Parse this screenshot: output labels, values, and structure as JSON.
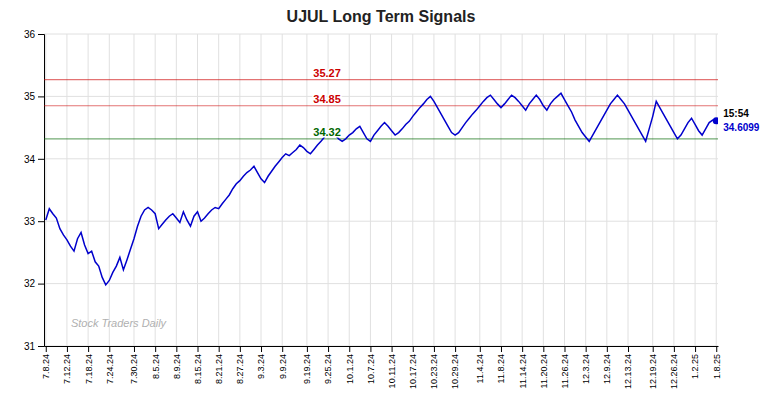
{
  "chart_data": {
    "type": "line",
    "title": "UJUL Long Term Signals",
    "categories": [
      "7.8.24",
      null,
      null,
      null,
      null,
      null,
      "7.12.24",
      null,
      null,
      null,
      null,
      null,
      "7.18.24",
      null,
      null,
      null,
      null,
      null,
      "7.24.24",
      null,
      null,
      null,
      null,
      null,
      null,
      "7.30.24",
      null,
      null,
      null,
      null,
      null,
      "8.5.24",
      null,
      null,
      null,
      null,
      null,
      "8.9.24",
      null,
      null,
      null,
      null,
      null,
      "8.15.24",
      null,
      null,
      null,
      null,
      null,
      "8.21.24",
      null,
      null,
      null,
      null,
      null,
      "8.27.24",
      null,
      null,
      null,
      null,
      null,
      "9.3.24",
      null,
      null,
      null,
      null,
      null,
      "9.9.24",
      null,
      null,
      null,
      null,
      null,
      null,
      "9.19.24",
      null,
      null,
      null,
      null,
      null,
      "9.25.24",
      null,
      null,
      null,
      null,
      null,
      "10.1.24",
      null,
      null,
      null,
      null,
      null,
      "10.7.24",
      null,
      null,
      null,
      null,
      null,
      "10.11.24",
      null,
      null,
      null,
      null,
      null,
      "10.17.24",
      null,
      null,
      null,
      null,
      null,
      "10.23.24",
      null,
      null,
      null,
      null,
      null,
      "10.29.24",
      null,
      null,
      null,
      null,
      null,
      null,
      "11.4.24",
      null,
      null,
      null,
      null,
      null,
      "11.8.24",
      null,
      null,
      null,
      null,
      null,
      "11.14.24",
      null,
      null,
      null,
      null,
      null,
      "11.20.24",
      null,
      null,
      null,
      null,
      null,
      "11.26.24",
      null,
      null,
      null,
      null,
      null,
      "12.3.24",
      null,
      null,
      null,
      null,
      null,
      "12.9.24",
      null,
      null,
      null,
      null,
      null,
      "12.13.24",
      null,
      null,
      null,
      null,
      null,
      null,
      "12.19.24",
      null,
      null,
      null,
      null,
      null,
      "12.26.24",
      null,
      null,
      null,
      null,
      null,
      "1.2.25",
      null,
      null,
      null,
      null,
      null,
      "1.8.25"
    ],
    "series": [
      {
        "color": "#0000cc",
        "values": [
          33.02,
          33.2,
          33.12,
          33.05,
          32.88,
          32.78,
          32.7,
          32.6,
          32.52,
          32.72,
          32.82,
          32.62,
          32.48,
          32.52,
          32.35,
          32.28,
          32.1,
          31.98,
          32.05,
          32.18,
          32.28,
          32.42,
          32.22,
          32.38,
          32.55,
          32.72,
          32.92,
          33.08,
          33.18,
          33.22,
          33.18,
          33.12,
          32.88,
          32.95,
          33.02,
          33.08,
          33.12,
          33.05,
          32.98,
          33.15,
          33.02,
          32.92,
          33.08,
          33.15,
          33.0,
          33.05,
          33.12,
          33.18,
          33.22,
          33.2,
          33.28,
          33.35,
          33.42,
          33.52,
          33.6,
          33.65,
          33.72,
          33.78,
          33.82,
          33.88,
          33.78,
          33.68,
          33.62,
          33.72,
          33.8,
          33.88,
          33.95,
          34.02,
          34.08,
          34.05,
          34.1,
          34.15,
          34.22,
          34.18,
          34.12,
          34.08,
          34.15,
          34.22,
          34.28,
          34.35,
          34.4,
          34.45,
          34.38,
          34.32,
          34.28,
          34.32,
          34.38,
          34.42,
          34.48,
          34.52,
          34.42,
          34.32,
          34.28,
          34.38,
          34.45,
          34.52,
          34.58,
          34.52,
          34.45,
          34.38,
          34.42,
          34.48,
          34.55,
          34.6,
          34.68,
          34.75,
          34.82,
          34.88,
          34.95,
          35.0,
          34.92,
          34.82,
          34.72,
          34.62,
          34.52,
          34.42,
          34.38,
          34.42,
          34.5,
          34.58,
          34.65,
          34.72,
          34.78,
          34.85,
          34.92,
          34.98,
          35.02,
          34.95,
          34.88,
          34.82,
          34.88,
          34.95,
          35.02,
          34.98,
          34.92,
          34.85,
          34.78,
          34.88,
          34.95,
          35.02,
          34.95,
          34.85,
          34.78,
          34.88,
          34.95,
          35.0,
          35.05,
          34.95,
          34.85,
          34.75,
          34.62,
          34.52,
          34.42,
          34.35,
          34.28,
          34.38,
          34.48,
          34.58,
          34.68,
          34.78,
          34.88,
          34.95,
          35.02,
          34.95,
          34.88,
          34.78,
          34.68,
          34.58,
          34.48,
          34.38,
          34.28,
          34.48,
          34.68,
          34.92,
          34.82,
          34.72,
          34.62,
          34.52,
          34.42,
          34.32,
          34.38,
          34.48,
          34.58,
          34.65,
          34.55,
          34.45,
          34.38,
          34.48,
          34.58,
          34.62,
          34.6099
        ]
      }
    ],
    "ylim": [
      31,
      36
    ],
    "yticks": [
      31,
      32,
      33,
      34,
      35,
      36
    ],
    "grid": true,
    "reference_lines": [
      {
        "value": 35.27,
        "color": "#cc0000"
      },
      {
        "value": 34.85,
        "color": "#cc0000"
      },
      {
        "value": 34.32,
        "color": "#006600"
      }
    ],
    "last_point": {
      "label": "15:54",
      "value": 34.6099
    },
    "watermark": "Stock Traders Daily"
  }
}
